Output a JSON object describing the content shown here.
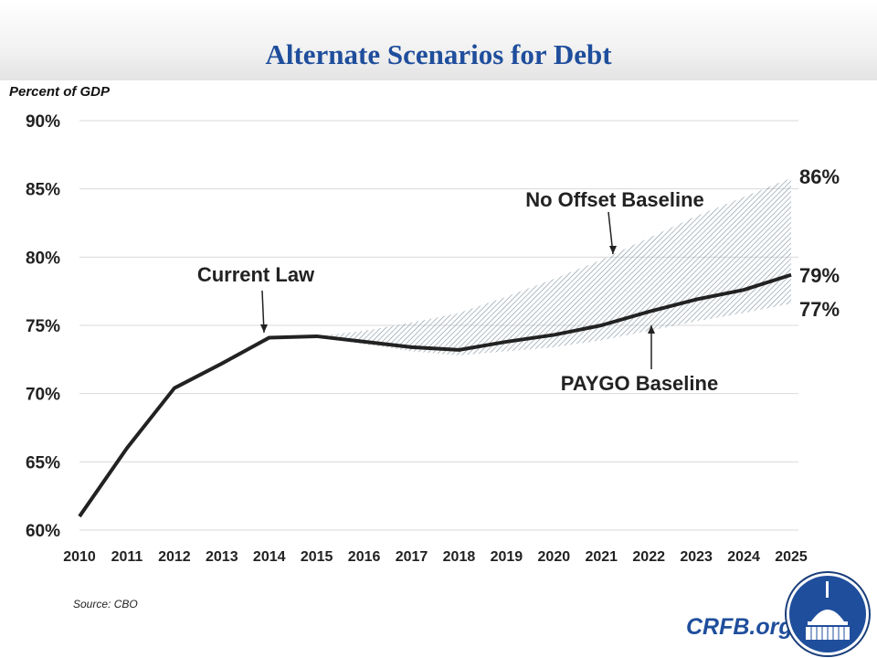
{
  "header": {
    "title": "Alternate Scenarios for Debt"
  },
  "footer": {
    "source": "Source: CBO",
    "brand": "CRFB.org"
  },
  "colors": {
    "title": "#1f4e9c",
    "line": "#222222",
    "hatch": "#8a9aa8"
  },
  "chart_data": {
    "type": "line",
    "title": "Alternate Scenarios for Debt",
    "ylabel": "Percent of GDP",
    "xlabel": "",
    "ylim": [
      60,
      90
    ],
    "yticks": [
      "60%",
      "65%",
      "70%",
      "75%",
      "80%",
      "85%",
      "90%"
    ],
    "ytick_values": [
      60,
      65,
      70,
      75,
      80,
      85,
      90
    ],
    "x": [
      2010,
      2011,
      2012,
      2013,
      2014,
      2015,
      2016,
      2017,
      2018,
      2019,
      2020,
      2021,
      2022,
      2023,
      2024,
      2025
    ],
    "grid": true,
    "series": [
      {
        "name": "Current Law",
        "values": [
          61.0,
          66.0,
          70.4,
          72.2,
          74.1,
          74.2,
          73.8,
          73.4,
          73.2,
          73.8,
          74.3,
          75.0,
          76.0,
          76.9,
          77.6,
          78.7
        ]
      },
      {
        "name": "No Offset Baseline",
        "x": [
          2015,
          2016,
          2017,
          2018,
          2019,
          2020,
          2021,
          2022,
          2023,
          2024,
          2025
        ],
        "values": [
          74.2,
          74.6,
          75.2,
          75.9,
          77.1,
          78.4,
          79.8,
          81.4,
          83.0,
          84.4,
          85.8
        ]
      },
      {
        "name": "PAYGO Baseline",
        "x": [
          2015,
          2016,
          2017,
          2018,
          2019,
          2020,
          2021,
          2022,
          2023,
          2024,
          2025
        ],
        "values": [
          74.2,
          73.6,
          73.1,
          72.8,
          73.1,
          73.4,
          73.9,
          74.6,
          75.3,
          75.9,
          76.6
        ]
      }
    ],
    "annotations": {
      "current_law": "Current Law",
      "no_offset": "No Offset Baseline",
      "paygo": "PAYGO Baseline"
    },
    "end_labels": {
      "no_offset": "86%",
      "current_law": "79%",
      "paygo": "77%"
    }
  }
}
